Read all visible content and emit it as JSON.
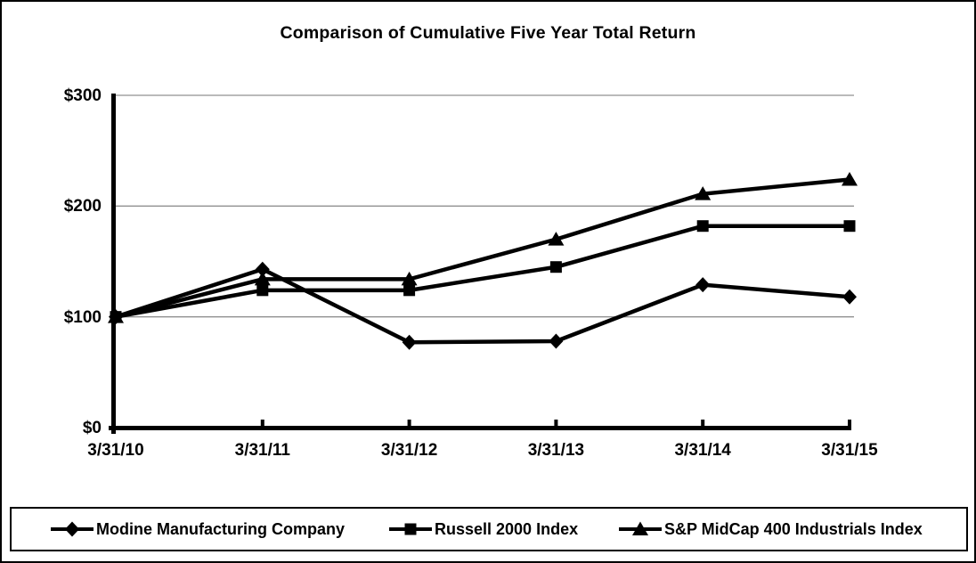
{
  "chart_data": {
    "type": "line",
    "title": "Comparison of Cumulative Five Year Total Return",
    "categories": [
      "3/31/10",
      "3/31/11",
      "3/31/12",
      "3/31/13",
      "3/31/14",
      "3/31/15"
    ],
    "series": [
      {
        "name": "Modine Manufacturing Company",
        "marker": "diamond",
        "color": "#000000",
        "values": [
          100,
          143,
          77,
          78,
          129,
          118
        ]
      },
      {
        "name": "Russell 2000 Index",
        "marker": "square",
        "color": "#000000",
        "values": [
          100,
          124,
          124,
          145,
          182,
          182
        ]
      },
      {
        "name": "S&P MidCap 400 Industrials Index",
        "marker": "triangle",
        "color": "#000000",
        "values": [
          100,
          134,
          134,
          170,
          211,
          224
        ]
      }
    ],
    "xlabel": "",
    "ylabel": "",
    "ylim": [
      0,
      300
    ],
    "y_ticks": [
      0,
      100,
      200,
      300
    ],
    "y_tick_labels": [
      "$0",
      "$100",
      "$200",
      "$300"
    ],
    "grid": "horizontal",
    "grid_color": "#909090",
    "axis_color": "#000000",
    "background_color": "#ffffff",
    "legend_position": "bottom"
  }
}
